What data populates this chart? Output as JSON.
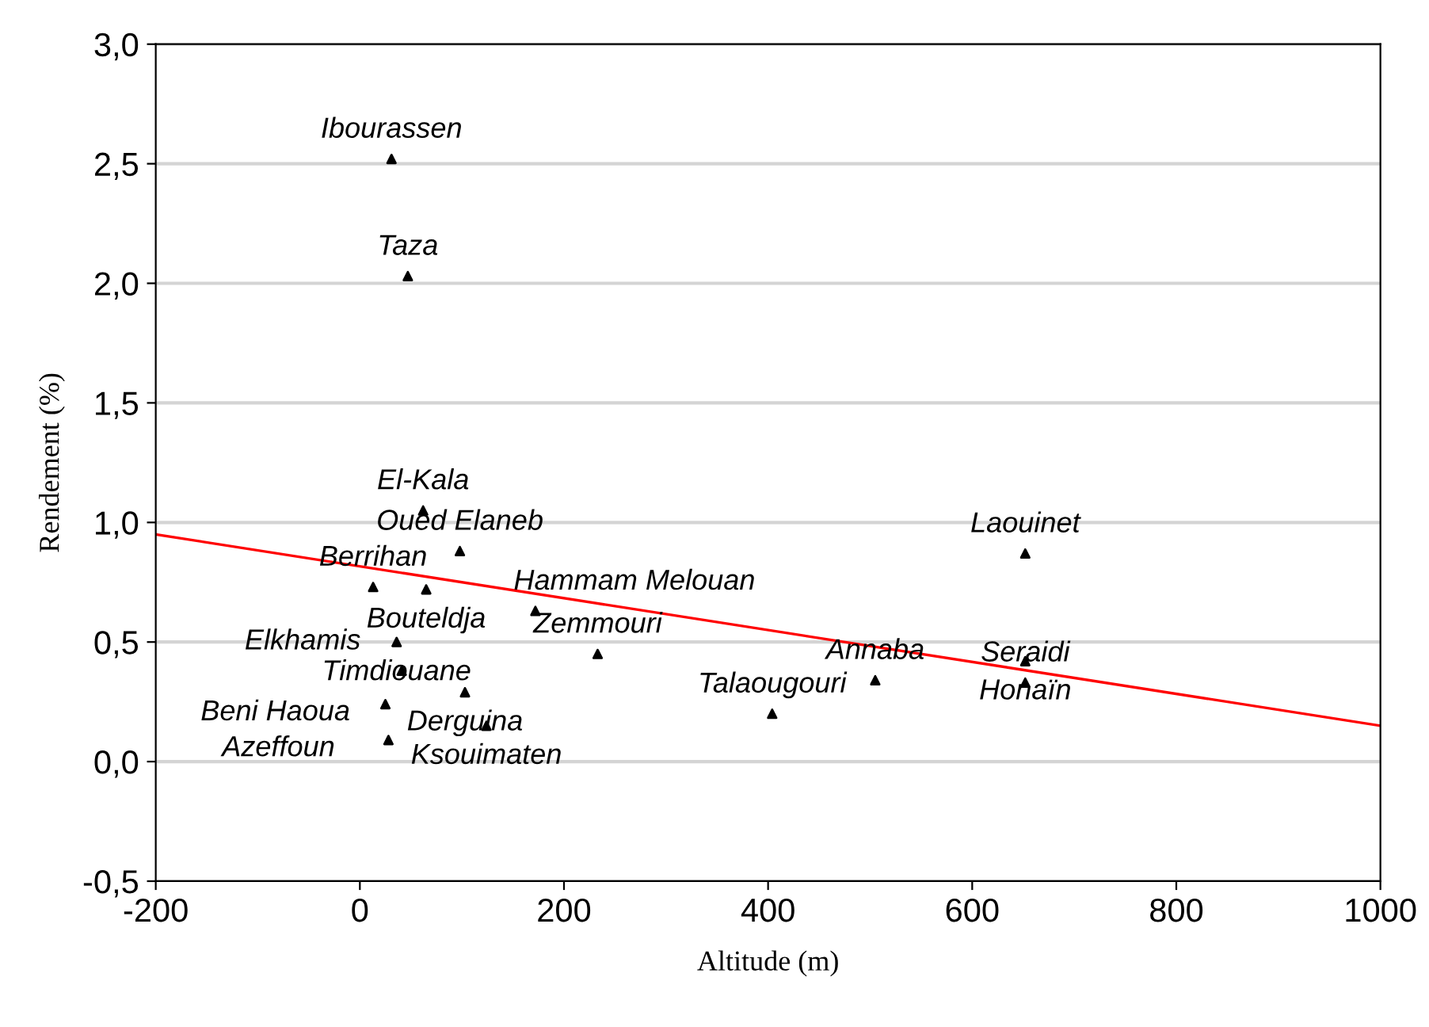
{
  "chart_data": {
    "type": "scatter",
    "xlabel": "Altitude (m)",
    "ylabel": "Rendement (%)",
    "xlim": [
      -200,
      1000
    ],
    "xticks": [
      -200,
      0,
      200,
      400,
      600,
      800,
      1000
    ],
    "ylim": [
      -0.5,
      3.0
    ],
    "yticks": [
      {
        "value": -0.5,
        "label": "-0,5"
      },
      {
        "value": 0.0,
        "label": "0,0"
      },
      {
        "value": 0.5,
        "label": "0,5"
      },
      {
        "value": 1.0,
        "label": "1,0"
      },
      {
        "value": 1.5,
        "label": "1,5"
      },
      {
        "value": 2.0,
        "label": "2,0"
      },
      {
        "value": 2.5,
        "label": "2,5"
      },
      {
        "value": 3.0,
        "label": "3,0"
      }
    ],
    "grid": "y",
    "legend": false,
    "marker": "triangle",
    "series": [
      {
        "color": "#000000",
        "x": [
          31,
          47,
          62,
          98,
          13,
          65,
          172,
          233,
          36,
          41,
          103,
          25,
          124,
          28,
          404,
          505,
          652,
          652,
          652
        ],
        "values": [
          2.52,
          2.03,
          1.05,
          0.88,
          0.73,
          0.72,
          0.63,
          0.45,
          0.5,
          0.38,
          0.29,
          0.24,
          0.15,
          0.09,
          0.2,
          0.34,
          0.33,
          0.42,
          0.87
        ]
      },
      {
        "type": "line",
        "color": "#ff0000",
        "x": [
          -200,
          1000
        ],
        "values": [
          0.95,
          0.15
        ],
        "line_style": "solid",
        "marker": "none"
      }
    ],
    "annotations": [
      {
        "text": "Ibourassen",
        "x": 31,
        "y": 2.52
      },
      {
        "text": "Taza",
        "x": 47,
        "y": 2.03
      },
      {
        "text": "El-Kala",
        "x": 62,
        "y": 1.05
      },
      {
        "text": "Oued Elaneb",
        "x": 98,
        "y": 0.88
      },
      {
        "text": "Berrihan",
        "x": 13,
        "y": 0.73
      },
      {
        "text": "Bouteldja",
        "x": 65,
        "y": 0.72
      },
      {
        "text": "Hammam Melouan",
        "x": 172,
        "y": 0.63
      },
      {
        "text": "Zemmouri",
        "x": 233,
        "y": 0.45
      },
      {
        "text": "Timdiouane",
        "x": 36,
        "y": 0.5
      },
      {
        "text": "Elkhamis",
        "x": 41,
        "y": 0.38
      },
      {
        "text": "Derguina",
        "x": 103,
        "y": 0.29
      },
      {
        "text": "Beni Haoua",
        "x": 25,
        "y": 0.24
      },
      {
        "text": "Ksouimaten",
        "x": 124,
        "y": 0.15
      },
      {
        "text": "Azeffoun",
        "x": 28,
        "y": 0.09
      },
      {
        "text": "Talaougouri",
        "x": 404,
        "y": 0.2
      },
      {
        "text": "Annaba",
        "x": 505,
        "y": 0.34
      },
      {
        "text": "Seraidi",
        "x": 652,
        "y": 0.33
      },
      {
        "text": "Honaïn",
        "x": 652,
        "y": 0.42
      },
      {
        "text": "Laouinet",
        "x": 652,
        "y": 0.87
      }
    ]
  }
}
